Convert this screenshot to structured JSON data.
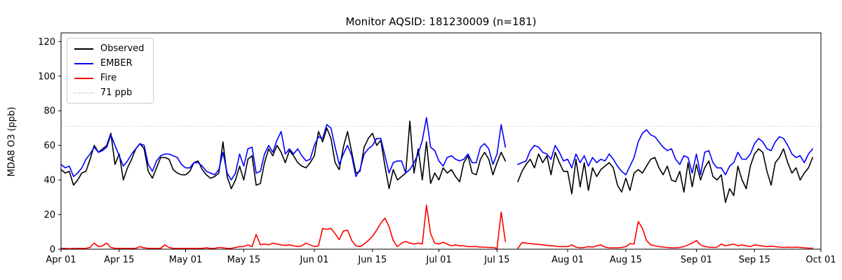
{
  "figure": {
    "title": "Monitor AQSID: 181230009 (n=181)",
    "ylabel": "MDA8 O3 (ppb)"
  },
  "legend": {
    "items": [
      {
        "label": "Observed",
        "color": "#000000",
        "style": "solid"
      },
      {
        "label": "EMBER",
        "color": "#0000ff",
        "style": "solid"
      },
      {
        "label": "Fire",
        "color": "#ff0000",
        "style": "solid"
      },
      {
        "label": "71 ppb",
        "color": "#d3d3d3",
        "style": "dotted"
      }
    ]
  },
  "chart_data": {
    "type": "line",
    "title": "Monitor AQSID: 181230009 (n=181)",
    "xlabel": "",
    "ylabel": "MDA8 O3 (ppb)",
    "ylim": [
      0,
      125
    ],
    "yticks": [
      0,
      20,
      40,
      60,
      80,
      100,
      120
    ],
    "xlim_days": [
      0,
      183
    ],
    "x_start_date": "Apr 01",
    "x_unit": "day",
    "xticks": [
      {
        "day": 0,
        "label": "Apr 01"
      },
      {
        "day": 14,
        "label": "Apr 15"
      },
      {
        "day": 30,
        "label": "May 01"
      },
      {
        "day": 44,
        "label": "May 15"
      },
      {
        "day": 61,
        "label": "Jun 01"
      },
      {
        "day": 75,
        "label": "Jun 15"
      },
      {
        "day": 91,
        "label": "Jul 01"
      },
      {
        "day": 105,
        "label": "Jul 15"
      },
      {
        "day": 122,
        "label": "Aug 01"
      },
      {
        "day": 136,
        "label": "Aug 15"
      },
      {
        "day": 153,
        "label": "Sep 01"
      },
      {
        "day": 167,
        "label": "Sep 15"
      },
      {
        "day": 183,
        "label": "Oct 01"
      }
    ],
    "threshold": {
      "value": 71,
      "label": "71 ppb",
      "color": "#d3d3d3",
      "linestyle": "dotted"
    },
    "legend_position": "upper left",
    "grid": false,
    "series": [
      {
        "name": "Observed",
        "color": "#000000",
        "values": [
          46,
          44,
          45,
          37,
          40,
          44,
          45,
          52,
          60,
          56,
          58,
          60,
          67,
          49,
          55,
          40,
          47,
          52,
          58,
          61,
          58,
          45,
          41,
          47,
          53,
          53,
          52,
          46,
          44,
          43,
          43,
          45,
          50,
          51,
          46,
          43,
          41,
          42,
          44,
          62,
          42,
          35,
          40,
          48,
          40,
          52,
          54,
          37,
          38,
          50,
          58,
          54,
          60,
          56,
          50,
          57,
          54,
          50,
          48,
          47,
          50,
          54,
          68,
          62,
          70,
          64,
          50,
          46,
          59,
          68,
          56,
          44,
          45,
          59,
          64,
          67,
          60,
          63,
          48,
          35,
          46,
          40,
          42,
          44,
          74,
          44,
          58,
          40,
          62,
          38,
          44,
          40,
          47,
          44,
          46,
          42,
          39,
          50,
          54,
          44,
          43,
          52,
          56,
          52,
          43,
          50,
          56,
          51,
          null,
          null,
          39,
          45,
          49,
          52,
          47,
          55,
          50,
          54,
          43,
          56,
          50,
          45,
          45,
          32,
          52,
          36,
          50,
          34,
          47,
          42,
          46,
          48,
          50,
          47,
          37,
          33,
          41,
          34,
          44,
          46,
          44,
          48,
          52,
          53,
          47,
          43,
          48,
          40,
          39,
          45,
          33,
          50,
          36,
          49,
          40,
          47,
          51,
          42,
          40,
          43,
          27,
          35,
          31,
          48,
          40,
          35,
          48,
          55,
          58,
          56,
          45,
          37,
          50,
          53,
          58,
          50,
          44,
          47,
          40,
          44,
          47,
          53
        ]
      },
      {
        "name": "EMBER",
        "color": "#0000ff",
        "values": [
          49,
          47,
          48,
          42,
          44,
          47,
          52,
          55,
          59,
          56,
          57,
          59,
          66,
          60,
          54,
          48,
          51,
          55,
          58,
          61,
          60,
          49,
          45,
          51,
          54,
          55,
          55,
          54,
          53,
          49,
          47,
          47,
          50,
          50,
          48,
          45,
          44,
          43,
          46,
          56,
          44,
          40,
          44,
          55,
          48,
          58,
          59,
          44,
          45,
          55,
          60,
          56,
          63,
          68,
          55,
          58,
          55,
          58,
          54,
          51,
          52,
          60,
          65,
          64,
          72,
          70,
          59,
          49,
          55,
          60,
          54,
          42,
          46,
          55,
          58,
          60,
          64,
          64,
          54,
          44,
          50,
          51,
          51,
          44,
          46,
          50,
          55,
          63,
          76,
          59,
          57,
          51,
          48,
          53,
          54,
          52,
          51,
          52,
          55,
          50,
          50,
          59,
          61,
          58,
          49,
          55,
          72,
          59,
          null,
          null,
          49,
          50,
          51,
          57,
          60,
          59,
          56,
          55,
          52,
          60,
          56,
          51,
          52,
          47,
          55,
          50,
          54,
          48,
          53,
          50,
          52,
          51,
          55,
          52,
          48,
          45,
          43,
          48,
          53,
          62,
          67,
          69,
          66,
          65,
          62,
          59,
          57,
          58,
          52,
          49,
          54,
          53,
          44,
          55,
          43,
          56,
          57,
          50,
          47,
          47,
          43,
          48,
          50,
          56,
          52,
          52,
          55,
          61,
          64,
          62,
          58,
          57,
          62,
          65,
          64,
          60,
          55,
          53,
          54,
          50,
          55,
          58
        ]
      },
      {
        "name": "Fire",
        "color": "#ff0000",
        "values": [
          0.5,
          0.5,
          0.3,
          0.5,
          0.5,
          0.5,
          0.5,
          1,
          3.5,
          1.5,
          2,
          3.5,
          1,
          0.5,
          0.5,
          0.5,
          0.5,
          0.5,
          0.5,
          1.5,
          0.8,
          0.5,
          0.5,
          0.5,
          0.5,
          2.5,
          1,
          0.5,
          0.5,
          0.5,
          0.5,
          0.5,
          0.5,
          0.5,
          0.5,
          0.8,
          0.5,
          0.5,
          1,
          0.8,
          0.5,
          0.5,
          1,
          1.5,
          1.5,
          2.5,
          1.5,
          8.5,
          2.5,
          3,
          2.5,
          3.5,
          3,
          2.5,
          2.2,
          2.5,
          2,
          1.5,
          2,
          3.5,
          2.5,
          1.5,
          2,
          12,
          11.5,
          12,
          9,
          5.5,
          10.5,
          11,
          5,
          2,
          1.5,
          3,
          5,
          7.5,
          11,
          15,
          18,
          13,
          5,
          1.5,
          3.5,
          4.5,
          3.5,
          3,
          3.5,
          3,
          25.5,
          9,
          3.5,
          3,
          4,
          3,
          2,
          2.5,
          2,
          2,
          1.5,
          1.5,
          1.5,
          1.2,
          1.2,
          1,
          1,
          0.5,
          21.5,
          4.5,
          null,
          null,
          0.5,
          3.8,
          3.5,
          3.2,
          3,
          2.8,
          2.5,
          2.2,
          2,
          1.8,
          1.5,
          1.5,
          1.5,
          2.5,
          1.2,
          0.8,
          1,
          1.5,
          1.2,
          2,
          2.5,
          1.2,
          0.8,
          0.8,
          0.8,
          1,
          1.5,
          3.2,
          3,
          16,
          12,
          5,
          2.5,
          2,
          1.5,
          1.2,
          1,
          0.8,
          0.8,
          1,
          1.5,
          2.5,
          3.5,
          5,
          2.5,
          1.5,
          1.2,
          1,
          1.2,
          3,
          2,
          2.5,
          3,
          2,
          2.5,
          2,
          1.5,
          2.5,
          2.2,
          1.8,
          1.5,
          1.8,
          1.5,
          1.2,
          1,
          1.2,
          1,
          1.2,
          1,
          0.8,
          0.6,
          0.6
        ]
      }
    ]
  }
}
